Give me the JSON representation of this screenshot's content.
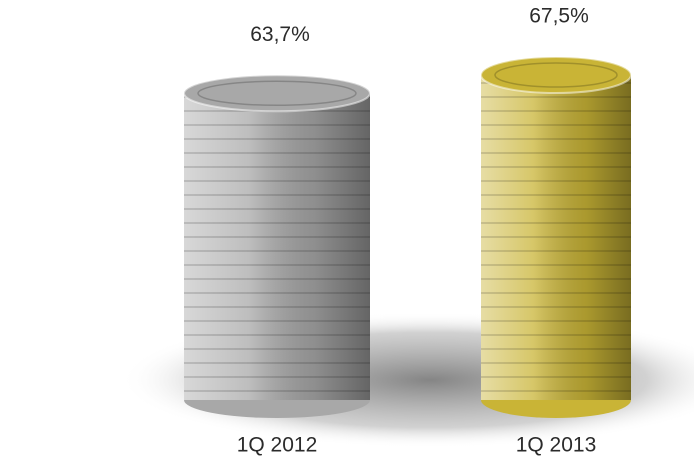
{
  "chart_data": {
    "type": "bar",
    "categories": [
      "1Q 2012",
      "1Q 2013"
    ],
    "values": [
      63.7,
      67.5
    ],
    "value_labels": [
      "63,7%",
      "67,5%"
    ],
    "colors": [
      "#a8a8a8",
      "#c9b436"
    ]
  }
}
